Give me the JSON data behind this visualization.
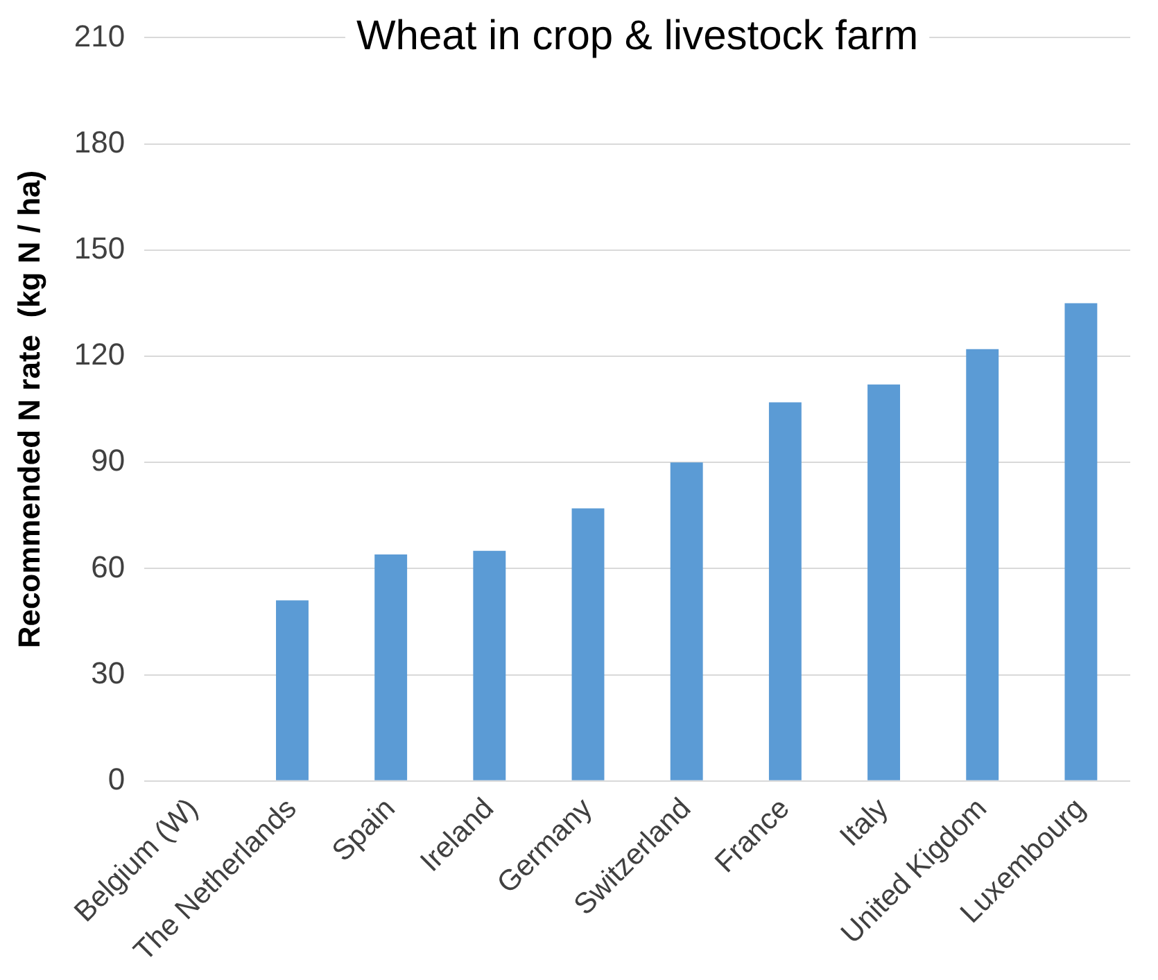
{
  "chart_data": {
    "type": "bar",
    "title": "Wheat in crop & livestock farm",
    "ylabel": "Recommended N rate  (kg N / ha)",
    "categories": [
      "Belgium (W)",
      "The Netherlands",
      "Spain",
      "Ireland",
      "Germany",
      "Switzerland",
      "France",
      "Italy",
      "United Kigdom",
      "Luxembourg"
    ],
    "values": [
      null,
      51,
      64,
      65,
      77,
      90,
      107,
      112,
      122,
      135
    ],
    "color": "#5b9bd5",
    "ylim": [
      0,
      210
    ],
    "yticks": [
      0,
      30,
      60,
      90,
      120,
      150,
      180,
      210
    ],
    "grid": "y"
  }
}
